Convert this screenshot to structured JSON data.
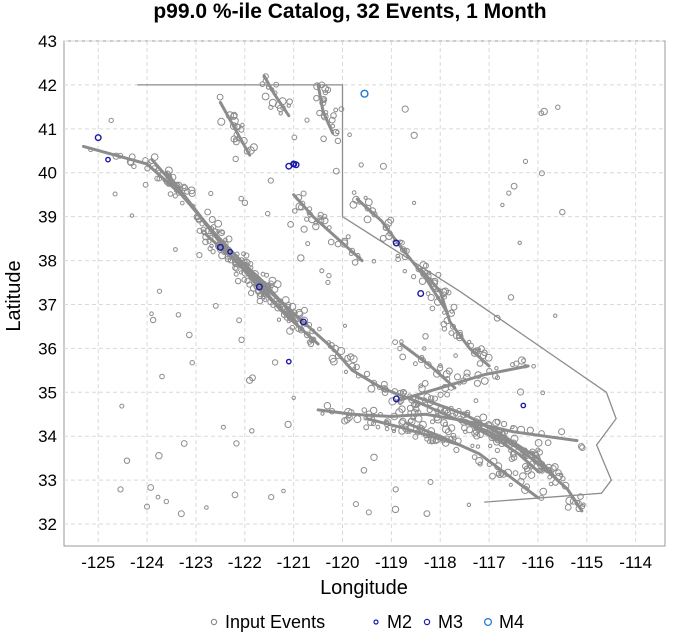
{
  "chart_data": {
    "type": "scatter",
    "title": "p99.0 %-ile Catalog, 32 Events, 1 Month",
    "xlabel": "Longitude",
    "ylabel": "Latitude",
    "xlim": [
      -125.7,
      -113.4
    ],
    "ylim": [
      31.5,
      43.0
    ],
    "xticks": [
      -125,
      -124,
      -123,
      -122,
      -121,
      -120,
      -119,
      -118,
      -117,
      -116,
      -115,
      -114
    ],
    "yticks": [
      32,
      33,
      34,
      35,
      36,
      37,
      38,
      39,
      40,
      41,
      42,
      43
    ],
    "grid": true,
    "legend_position": "bottom",
    "legend": [
      {
        "label": "Input Events",
        "color": "#8c8c8c"
      },
      {
        "label": "M2",
        "color": "#1a1aa6"
      },
      {
        "label": "M3",
        "color": "#1a1aa6"
      },
      {
        "label": "M4",
        "color": "#1e78d0"
      }
    ],
    "series": [
      {
        "name": "M2",
        "color": "#1a1aa6",
        "points": [
          [
            -124.8,
            40.3
          ],
          [
            -121.0,
            40.2
          ],
          [
            -121.1,
            35.7
          ],
          [
            -116.3,
            34.7
          ],
          [
            -122.3,
            38.2
          ]
        ]
      },
      {
        "name": "M3",
        "color": "#1a1aa6",
        "points": [
          [
            -125.0,
            40.8
          ],
          [
            -121.0,
            40.2
          ],
          [
            -121.1,
            40.15
          ],
          [
            -120.95,
            40.18
          ],
          [
            -122.5,
            38.3
          ],
          [
            -121.7,
            37.4
          ],
          [
            -120.8,
            36.6
          ],
          [
            -118.9,
            38.4
          ],
          [
            -118.4,
            37.25
          ],
          [
            -118.9,
            34.85
          ]
        ]
      },
      {
        "name": "M4",
        "color": "#1e78d0",
        "points": [
          [
            -119.55,
            41.8
          ]
        ]
      }
    ]
  }
}
